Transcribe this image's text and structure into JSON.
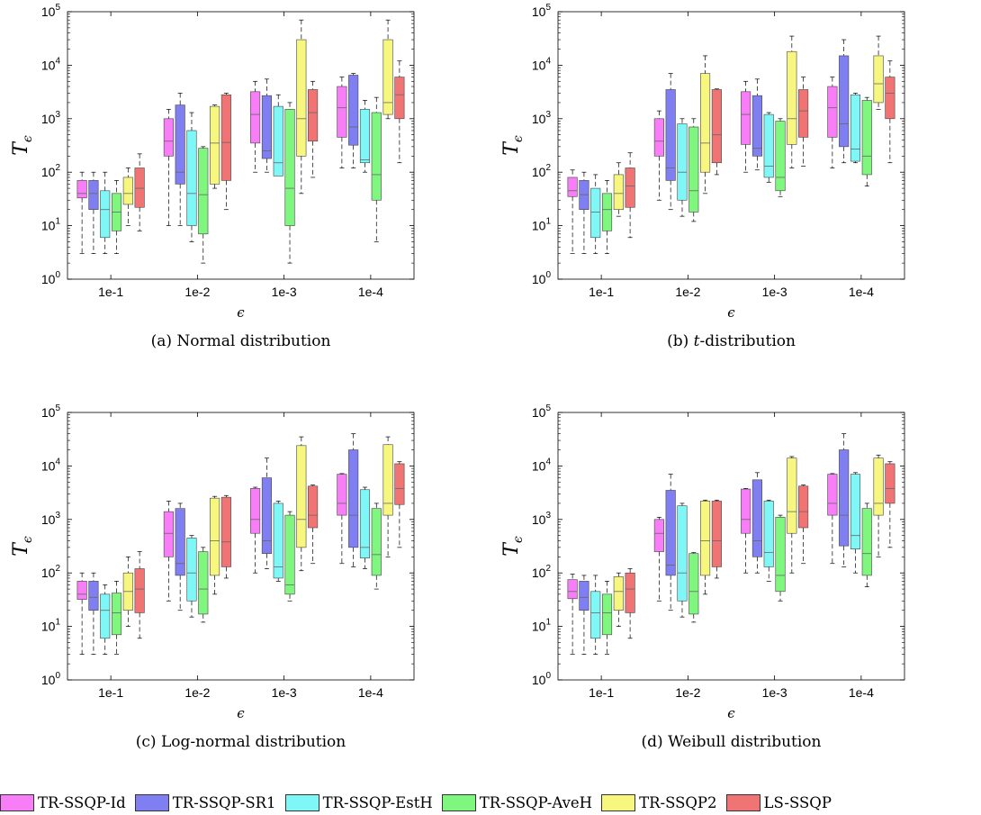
{
  "chart_data": [
    {
      "type": "box",
      "title": "",
      "xlabel": "ϵ",
      "ylabel": "Tϵ",
      "y_scale": "log",
      "ylim": [
        1,
        100000
      ],
      "y_ticks": [
        "10^0",
        "10^1",
        "10^2",
        "10^3",
        "10^4",
        "10^5"
      ],
      "categories": [
        "1e-1",
        "1e-2",
        "1e-3",
        "1e-4"
      ],
      "series": [
        {
          "name": "TR-SSQP-Id",
          "boxes": [
            [
              3,
              33,
              40,
              70,
              100
            ],
            [
              10,
              200,
              380,
              1000,
              1500
            ],
            [
              100,
              350,
              1200,
              3200,
              5000
            ],
            [
              120,
              450,
              1600,
              4000,
              6000
            ]
          ]
        },
        {
          "name": "TR-SSQP-SR1",
          "boxes": [
            [
              3,
              20,
              40,
              70,
              100
            ],
            [
              10,
              60,
              100,
              1800,
              3000
            ],
            [
              100,
              180,
              250,
              2700,
              5500
            ],
            [
              120,
              320,
              700,
              6500,
              7000
            ]
          ]
        },
        {
          "name": "TR-SSQP-EstH",
          "boxes": [
            [
              3,
              6,
              20,
              45,
              100
            ],
            [
              5,
              10,
              40,
              600,
              1300
            ],
            [
              90,
              85,
              150,
              1700,
              2800
            ],
            [
              100,
              150,
              170,
              1500,
              2200
            ]
          ]
        },
        {
          "name": "TR-SSQP-AveH",
          "boxes": [
            [
              3,
              8,
              18,
              40,
              70
            ],
            [
              2,
              7,
              38,
              280,
              300
            ],
            [
              2,
              10,
              50,
              1500,
              2000
            ],
            [
              5,
              30,
              90,
              1300,
              2500
            ]
          ]
        },
        {
          "name": "TR-SSQP2",
          "boxes": [
            [
              10,
              25,
              40,
              80,
              120
            ],
            [
              50,
              60,
              350,
              1700,
              1800
            ],
            [
              40,
              200,
              1000,
              30000,
              70000
            ],
            [
              1000,
              1200,
              2000,
              30000,
              70000
            ]
          ]
        },
        {
          "name": "LS-SSQP",
          "boxes": [
            [
              8,
              22,
              50,
              120,
              220
            ],
            [
              20,
              70,
              360,
              2800,
              3000
            ],
            [
              80,
              380,
              1300,
              3500,
              5000
            ],
            [
              150,
              1000,
              2800,
              6000,
              12000
            ]
          ]
        }
      ]
    },
    {
      "type": "box",
      "title": "",
      "xlabel": "ϵ",
      "ylabel": "Tϵ",
      "y_scale": "log",
      "ylim": [
        1,
        100000
      ],
      "y_ticks": [
        "10^0",
        "10^1",
        "10^2",
        "10^3",
        "10^4",
        "10^5"
      ],
      "categories": [
        "1e-1",
        "1e-2",
        "1e-3",
        "1e-4"
      ],
      "series": [
        {
          "name": "TR-SSQP-Id",
          "boxes": [
            [
              3,
              35,
              45,
              80,
              110
            ],
            [
              30,
              200,
              380,
              1000,
              1400
            ],
            [
              100,
              330,
              1200,
              3200,
              5000
            ],
            [
              120,
              450,
              1600,
              4000,
              6000
            ]
          ]
        },
        {
          "name": "TR-SSQP-SR1",
          "boxes": [
            [
              3,
              20,
              38,
              70,
              100
            ],
            [
              20,
              70,
              120,
              3500,
              7000
            ],
            [
              110,
              200,
              280,
              2700,
              5500
            ],
            [
              150,
              300,
              800,
              15000,
              30000
            ]
          ]
        },
        {
          "name": "TR-SSQP-EstH",
          "boxes": [
            [
              3,
              6,
              18,
              50,
              90
            ],
            [
              15,
              30,
              100,
              800,
              1000
            ],
            [
              65,
              80,
              130,
              1200,
              1300
            ],
            [
              150,
              160,
              270,
              2800,
              3000
            ]
          ]
        },
        {
          "name": "TR-SSQP-AveH",
          "boxes": [
            [
              3,
              8,
              20,
              40,
              70
            ],
            [
              12,
              18,
              45,
              700,
              1000
            ],
            [
              35,
              45,
              80,
              900,
              1000
            ],
            [
              55,
              90,
              200,
              2200,
              2500
            ]
          ]
        },
        {
          "name": "TR-SSQP2",
          "boxes": [
            [
              15,
              20,
              40,
              90,
              150
            ],
            [
              40,
              100,
              350,
              7000,
              15000
            ],
            [
              120,
              330,
              1000,
              18000,
              35000
            ],
            [
              1500,
              2000,
              4500,
              15000,
              35000
            ]
          ]
        },
        {
          "name": "LS-SSQP",
          "boxes": [
            [
              6,
              22,
              55,
              120,
              230
            ],
            [
              90,
              150,
              500,
              3500,
              3600
            ],
            [
              130,
              450,
              1400,
              3500,
              6000
            ],
            [
              150,
              1000,
              3000,
              6000,
              12000
            ]
          ]
        }
      ]
    },
    {
      "type": "box",
      "title": "",
      "xlabel": "ϵ",
      "ylabel": "Tϵ",
      "y_scale": "log",
      "ylim": [
        1,
        100000
      ],
      "y_ticks": [
        "10^0",
        "10^1",
        "10^2",
        "10^3",
        "10^4",
        "10^5"
      ],
      "categories": [
        "1e-1",
        "1e-2",
        "1e-3",
        "1e-4"
      ],
      "series": [
        {
          "name": "TR-SSQP-Id",
          "boxes": [
            [
              3,
              32,
              40,
              70,
              100
            ],
            [
              30,
              200,
              550,
              1400,
              2200
            ],
            [
              100,
              550,
              1000,
              3800,
              4000
            ],
            [
              150,
              1200,
              2000,
              7000,
              7200
            ]
          ]
        },
        {
          "name": "TR-SSQP-SR1",
          "boxes": [
            [
              3,
              20,
              35,
              70,
              100
            ],
            [
              20,
              90,
              150,
              1600,
              2000
            ],
            [
              120,
              230,
              400,
              6000,
              14000
            ],
            [
              130,
              300,
              1200,
              20000,
              40000
            ]
          ]
        },
        {
          "name": "TR-SSQP-EstH",
          "boxes": [
            [
              3,
              6,
              20,
              40,
              60
            ],
            [
              15,
              30,
              100,
              450,
              500
            ],
            [
              70,
              80,
              130,
              2000,
              2200
            ],
            [
              120,
              190,
              300,
              3600,
              4000
            ]
          ]
        },
        {
          "name": "TR-SSQP-AveH",
          "boxes": [
            [
              3,
              7,
              18,
              42,
              70
            ],
            [
              12,
              17,
              50,
              250,
              300
            ],
            [
              30,
              40,
              60,
              1200,
              1400
            ],
            [
              50,
              90,
              220,
              1600,
              2000
            ]
          ]
        },
        {
          "name": "TR-SSQP2",
          "boxes": [
            [
              10,
              20,
              45,
              100,
              200
            ],
            [
              40,
              90,
              400,
              2500,
              2700
            ],
            [
              110,
              300,
              1000,
              24000,
              35000
            ],
            [
              200,
              1200,
              2000,
              25000,
              35000
            ]
          ]
        },
        {
          "name": "LS-SSQP",
          "boxes": [
            [
              6,
              18,
              50,
              120,
              250
            ],
            [
              80,
              130,
              380,
              2600,
              2800
            ],
            [
              150,
              700,
              1200,
              4200,
              4400
            ],
            [
              300,
              1900,
              3800,
              11000,
              12000
            ]
          ]
        }
      ]
    },
    {
      "type": "box",
      "title": "",
      "xlabel": "ϵ",
      "ylabel": "Tϵ",
      "y_scale": "log",
      "ylim": [
        1,
        100000
      ],
      "y_ticks": [
        "10^0",
        "10^1",
        "10^2",
        "10^3",
        "10^4",
        "10^5"
      ],
      "categories": [
        "1e-1",
        "1e-2",
        "1e-3",
        "1e-4"
      ],
      "series": [
        {
          "name": "TR-SSQP-Id",
          "boxes": [
            [
              3,
              33,
              45,
              75,
              95
            ],
            [
              30,
              250,
              550,
              1000,
              1100
            ],
            [
              100,
              550,
              1000,
              3700,
              3800
            ],
            [
              150,
              1200,
              2000,
              7000,
              7200
            ]
          ]
        },
        {
          "name": "TR-SSQP-SR1",
          "boxes": [
            [
              3,
              20,
              35,
              70,
              90
            ],
            [
              20,
              90,
              140,
              3500,
              7000
            ],
            [
              100,
              200,
              400,
              5500,
              7500
            ],
            [
              130,
              320,
              1200,
              20000,
              40000
            ]
          ]
        },
        {
          "name": "TR-SSQP-EstH",
          "boxes": [
            [
              3,
              6,
              18,
              45,
              90
            ],
            [
              15,
              30,
              100,
              1800,
              2000
            ],
            [
              70,
              130,
              240,
              2200,
              2300
            ],
            [
              100,
              280,
              500,
              7000,
              7500
            ]
          ]
        },
        {
          "name": "TR-SSQP-AveH",
          "boxes": [
            [
              3,
              7,
              18,
              40,
              70
            ],
            [
              12,
              17,
              45,
              230,
              240
            ],
            [
              30,
              45,
              90,
              1100,
              1200
            ],
            [
              55,
              90,
              230,
              1600,
              2000
            ]
          ]
        },
        {
          "name": "TR-SSQP2",
          "boxes": [
            [
              10,
              20,
              45,
              85,
              100
            ],
            [
              40,
              90,
              400,
              2200,
              2300
            ],
            [
              100,
              550,
              1400,
              14000,
              15000
            ],
            [
              200,
              1200,
              2000,
              14000,
              16000
            ]
          ]
        },
        {
          "name": "LS-SSQP",
          "boxes": [
            [
              6,
              18,
              50,
              100,
              120
            ],
            [
              80,
              130,
              400,
              2200,
              2300
            ],
            [
              150,
              700,
              1400,
              4200,
              4400
            ],
            [
              300,
              2000,
              3800,
              11000,
              12000
            ]
          ]
        }
      ]
    }
  ],
  "captions": [
    "(a) Normal distribution",
    "(b) t-distribution",
    "(c) Log-normal distribution",
    "(d) Weibull distribution"
  ],
  "legend": [
    {
      "name": "TR-SSQP-Id",
      "color": "#f77ef7"
    },
    {
      "name": "TR-SSQP-SR1",
      "color": "#7f7ff2"
    },
    {
      "name": "TR-SSQP-EstH",
      "color": "#7ff7f7"
    },
    {
      "name": "TR-SSQP-AveH",
      "color": "#7ff77f"
    },
    {
      "name": "TR-SSQP2",
      "color": "#f7f77f"
    },
    {
      "name": "LS-SSQP",
      "color": "#f07474"
    }
  ]
}
